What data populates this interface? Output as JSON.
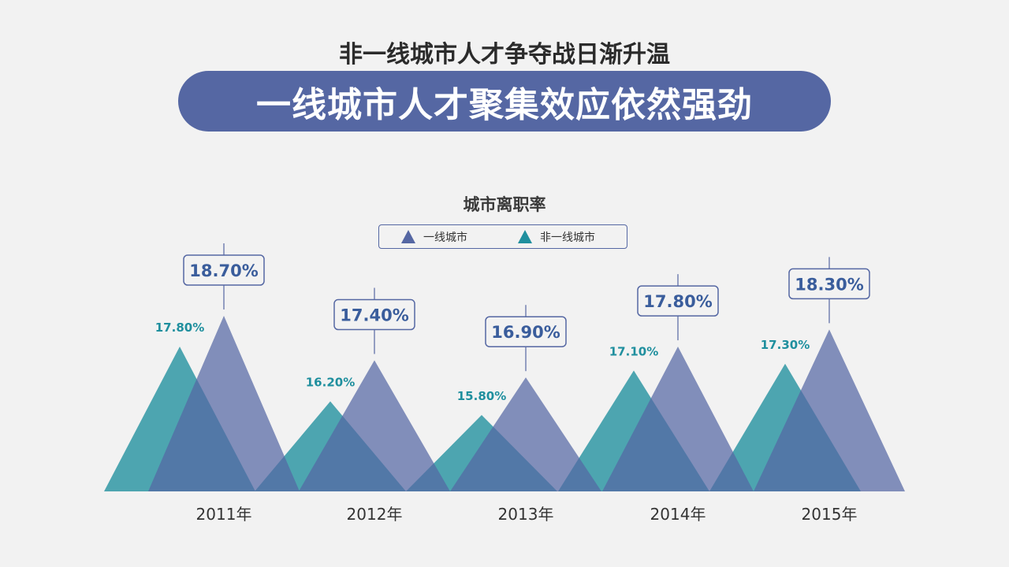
{
  "header": {
    "subtitle": "非一线城市人才争夺战日渐升温",
    "title": "一线城市人才聚集效应依然强劲"
  },
  "colors": {
    "tier1": "#5567a3",
    "nontier1": "#1f8f9e",
    "label_tier1": "#3a5d9c",
    "label_nontier1": "#1f8f9e"
  },
  "chart_data": {
    "type": "area",
    "title": "城市离职率",
    "categories": [
      "2011年",
      "2012年",
      "2013年",
      "2014年",
      "2015年"
    ],
    "series": [
      {
        "name": "一线城市",
        "values": [
          18.7,
          17.4,
          16.9,
          17.8,
          18.3
        ],
        "labels": [
          "18.70%",
          "17.40%",
          "16.90%",
          "17.80%",
          "18.30%"
        ]
      },
      {
        "name": "非一线城市",
        "values": [
          17.8,
          16.2,
          15.8,
          17.1,
          17.3
        ],
        "labels": [
          "17.80%",
          "16.20%",
          "15.80%",
          "17.10%",
          "17.30%"
        ]
      }
    ],
    "ylim": [
      13.57,
      18.7
    ],
    "legend": "top-center"
  }
}
